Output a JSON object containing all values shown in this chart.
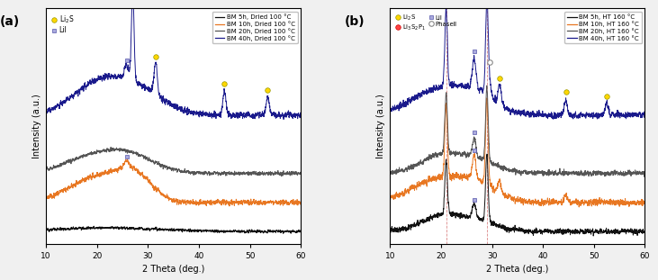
{
  "panel_a": {
    "label": "(a)",
    "xlabel": "2 Theta (deg.)",
    "ylabel": "Intensity (a.u.)",
    "xlim": [
      10,
      60
    ],
    "lines": [
      {
        "color": "#111111",
        "label": "BM 5h, Dried 100 °C",
        "style": "bm5"
      },
      {
        "color": "#E87722",
        "label": "BM 10h, Dried 100 °C",
        "style": "bm10"
      },
      {
        "color": "#555555",
        "label": "BM 20h, Dried 100 °C",
        "style": "bm20"
      },
      {
        "color": "#1A1A8C",
        "label": "BM 40h, Dried 100 °C",
        "style": "bm40"
      }
    ],
    "offsets": [
      0.0,
      0.12,
      0.24,
      0.48
    ],
    "li2s_peaks": [
      27.0,
      31.5,
      45.0,
      53.5
    ],
    "lii_peaks_orange": [
      25.8
    ],
    "lii_peaks_blue": [
      25.8
    ]
  },
  "panel_b": {
    "label": "(b)",
    "xlabel": "2 Theta (deg.)",
    "ylabel": "Intensity (a.u.)",
    "xlim": [
      10,
      60
    ],
    "lines": [
      {
        "color": "#111111",
        "label": "BM 5h, HT 160 °C",
        "style": "b_bm5"
      },
      {
        "color": "#E87722",
        "label": "BM 10h, HT 160 °C",
        "style": "b_bm10"
      },
      {
        "color": "#555555",
        "label": "BM 20h, HT 160 °C",
        "style": "b_bm20"
      },
      {
        "color": "#1A1A8C",
        "label": "BM 40h, HT 160 °C",
        "style": "b_bm40"
      }
    ],
    "offsets": [
      0.0,
      0.12,
      0.24,
      0.48
    ],
    "li2s_peaks_blue": [
      31.5,
      44.5,
      52.5
    ],
    "lii_peaks": [
      26.5
    ],
    "li3ps4_peaks": [
      21.0,
      29.0
    ],
    "phaseII_peaks": [
      29.5
    ],
    "vlines": [
      21.0,
      29.0
    ]
  },
  "fig_bg": "#f0f0f0",
  "plot_bg": "#ffffff",
  "marker_li2s_color": "#FFD700",
  "marker_li2s_edge": "#999900",
  "marker_lii_facecolor": "#AAAADD",
  "marker_lii_edge": "#5555AA",
  "marker_li3ps4_color": "#FF4444",
  "marker_li3ps4_edge": "#CC0000",
  "marker_phaseII_color": "#ffffff",
  "marker_phaseII_edge": "#888888"
}
